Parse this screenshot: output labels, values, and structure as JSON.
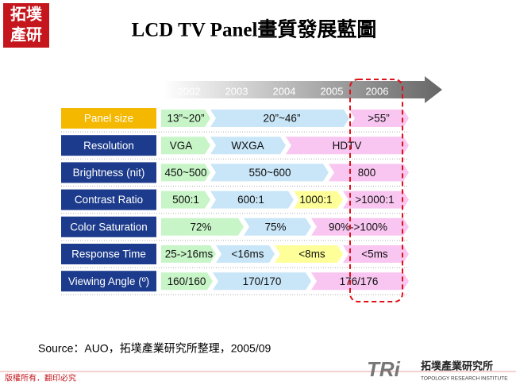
{
  "logo": {
    "top": "拓墣",
    "bottom": "產研"
  },
  "title": "LCD TV Panel畫質發展藍圖",
  "years": [
    "2002",
    "2003",
    "2004",
    "2005",
    "2006"
  ],
  "rows": [
    {
      "label": "Panel size",
      "segments": [
        "13”~20”",
        "20”~46”",
        ">55”"
      ]
    },
    {
      "label": "Resolution",
      "segments": [
        "VGA",
        "WXGA",
        "HDTV"
      ]
    },
    {
      "label": "Brightness (nit)",
      "segments": [
        "450~500",
        "550~600",
        "800"
      ]
    },
    {
      "label": "Contrast Ratio",
      "segments": [
        "500:1",
        "600:1",
        "1000:1",
        ">1000:1"
      ]
    },
    {
      "label": "Color Saturation",
      "segments": [
        "72%",
        "75%",
        "90%->100%"
      ]
    },
    {
      "label": "Response Time",
      "segments": [
        "25->16ms",
        "<16ms",
        "<8ms",
        "<5ms"
      ]
    },
    {
      "label": "Viewing Angle (º)",
      "segments": [
        "160/160",
        "170/170",
        "176/176"
      ]
    }
  ],
  "source": "Source：AUO，拓墣產業研究所整理，2005/09",
  "copyright": "版權所有．翻印必究",
  "footer_logo": {
    "mark": "TRi",
    "name": "拓墣產業研究所",
    "english": "TOPOLOGY RESEARCH INSTITUTE"
  }
}
